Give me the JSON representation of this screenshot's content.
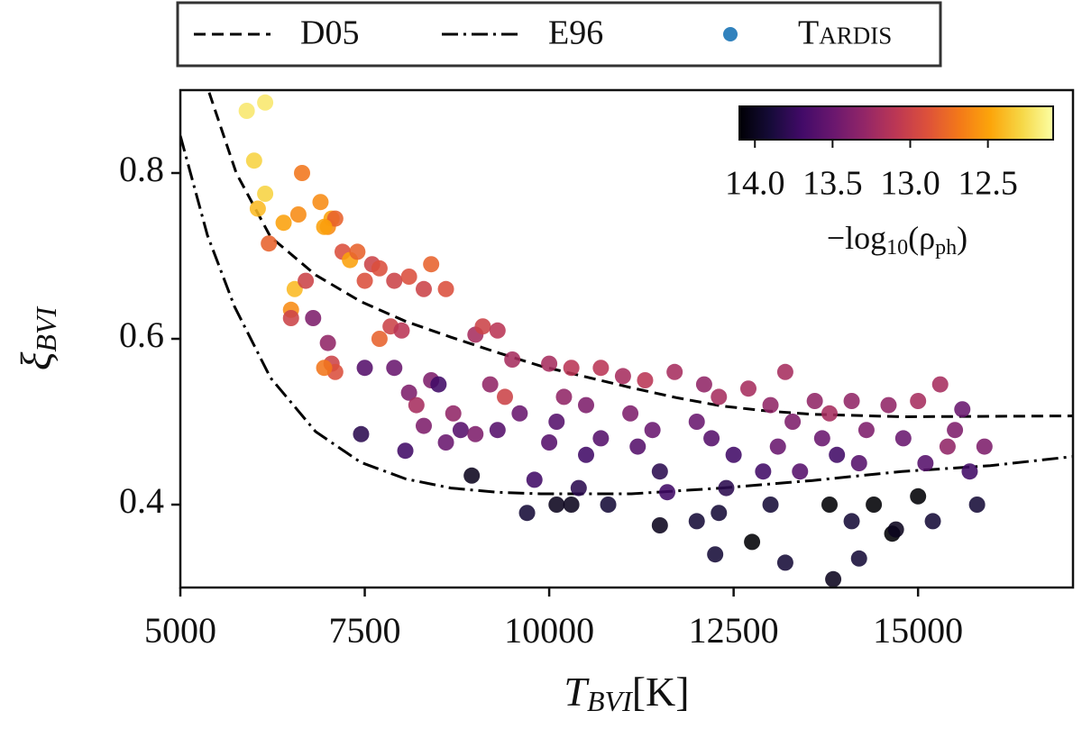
{
  "chart_data": {
    "type": "scatter",
    "xlabel": {
      "main": "T",
      "sub": "BVI",
      "unit": "[K]"
    },
    "ylabel": {
      "main": "ξ",
      "sub": "BVI"
    },
    "xlim": [
      5000,
      17100
    ],
    "ylim": [
      0.3,
      0.9
    ],
    "xticks": [
      5000,
      7500,
      10000,
      12500,
      15000
    ],
    "yticks": [
      0.4,
      0.6,
      0.8
    ],
    "legend": "top-outside",
    "lines": [
      {
        "name": "D05",
        "color": "#000000",
        "dash": "dashed",
        "x": [
          5391,
          5758,
          6222,
          6834,
          7445,
          8056,
          8668,
          9279,
          9890,
          10501,
          11113,
          11724,
          12335,
          12946,
          13558,
          14780,
          17100
        ],
        "values": [
          0.897,
          0.8,
          0.723,
          0.677,
          0.645,
          0.621,
          0.602,
          0.584,
          0.567,
          0.554,
          0.541,
          0.529,
          0.519,
          0.513,
          0.509,
          0.506,
          0.507
        ]
      },
      {
        "name": "E96",
        "color": "#000000",
        "dash": "dashdot",
        "x": [
          5000,
          5367,
          5734,
          6222,
          6834,
          7445,
          8056,
          8668,
          9279,
          9890,
          11113,
          12335,
          13558,
          14780,
          15980,
          17100
        ],
        "values": [
          0.845,
          0.725,
          0.639,
          0.553,
          0.488,
          0.451,
          0.431,
          0.42,
          0.415,
          0.413,
          0.413,
          0.42,
          0.429,
          0.44,
          0.447,
          0.458
        ]
      }
    ],
    "scatter": {
      "name": "Tardis",
      "color": "#3182bd",
      "x": [
        5900,
        6150,
        6000,
        6150,
        6050,
        6400,
        6600,
        6650,
        6200,
        6900,
        7050,
        7000,
        7100,
        6950,
        6550,
        6500,
        6500,
        6700,
        6800,
        7200,
        7300,
        7400,
        7600,
        7700,
        7000,
        7050,
        7100,
        6950,
        7500,
        7900,
        8100,
        8300,
        8400,
        8600,
        7700,
        7850,
        8000,
        7500,
        7900,
        7450,
        8100,
        8200,
        8400,
        8500,
        8300,
        8700,
        8600,
        8050,
        8800,
        9000,
        9100,
        9300,
        9500,
        9200,
        9400,
        9000,
        9300,
        9600,
        8950,
        9800,
        9700,
        10100,
        10300,
        10000,
        10300,
        10700,
        10200,
        10500,
        10100,
        10000,
        10500,
        10700,
        10400,
        10800,
        11000,
        11300,
        11700,
        11100,
        11400,
        11200,
        11500,
        11600,
        11500,
        12000,
        12100,
        12300,
        12000,
        12200,
        12500,
        12400,
        12300,
        12250,
        12750,
        13200,
        12700,
        13200,
        13000,
        13300,
        13100,
        12900,
        13000,
        13400,
        13600,
        13800,
        13700,
        13900,
        13800,
        13850,
        14100,
        14300,
        14200,
        14100,
        14400,
        14200,
        14650,
        14700,
        14600,
        14800,
        15000,
        15000,
        15100,
        15300,
        15200,
        15400,
        15600,
        15700,
        15800,
        15900,
        15500
      ],
      "values": [
        0.875,
        0.885,
        0.815,
        0.775,
        0.757,
        0.74,
        0.75,
        0.8,
        0.715,
        0.765,
        0.745,
        0.735,
        0.745,
        0.735,
        0.66,
        0.635,
        0.625,
        0.67,
        0.625,
        0.705,
        0.695,
        0.705,
        0.69,
        0.685,
        0.595,
        0.57,
        0.56,
        0.565,
        0.67,
        0.67,
        0.675,
        0.66,
        0.69,
        0.66,
        0.6,
        0.615,
        0.61,
        0.565,
        0.565,
        0.485,
        0.535,
        0.52,
        0.55,
        0.545,
        0.495,
        0.51,
        0.475,
        0.465,
        0.49,
        0.605,
        0.615,
        0.61,
        0.575,
        0.545,
        0.53,
        0.485,
        0.49,
        0.51,
        0.435,
        0.43,
        0.39,
        0.4,
        0.4,
        0.57,
        0.565,
        0.565,
        0.53,
        0.52,
        0.5,
        0.475,
        0.46,
        0.48,
        0.42,
        0.4,
        0.555,
        0.55,
        0.56,
        0.51,
        0.49,
        0.47,
        0.44,
        0.415,
        0.375,
        0.38,
        0.545,
        0.53,
        0.5,
        0.48,
        0.46,
        0.42,
        0.39,
        0.34,
        0.355,
        0.33,
        0.54,
        0.56,
        0.52,
        0.5,
        0.47,
        0.44,
        0.4,
        0.44,
        0.525,
        0.51,
        0.48,
        0.46,
        0.4,
        0.31,
        0.525,
        0.49,
        0.45,
        0.38,
        0.4,
        0.335,
        0.365,
        0.37,
        0.52,
        0.48,
        0.525,
        0.41,
        0.45,
        0.545,
        0.38,
        0.47,
        0.515,
        0.44,
        0.4,
        0.47,
        0.49
      ],
      "c": [
        12.2,
        12.2,
        12.3,
        12.3,
        12.4,
        12.5,
        12.6,
        12.7,
        12.8,
        12.6,
        12.5,
        12.6,
        12.8,
        12.5,
        12.4,
        12.6,
        13.0,
        13.0,
        13.4,
        12.9,
        12.5,
        12.8,
        13.0,
        12.9,
        13.3,
        13.0,
        12.9,
        12.7,
        12.9,
        13.0,
        12.9,
        13.0,
        12.8,
        12.9,
        12.8,
        13.0,
        13.1,
        13.6,
        13.5,
        13.8,
        13.4,
        13.2,
        13.4,
        13.7,
        13.4,
        13.3,
        13.5,
        13.7,
        13.6,
        13.2,
        13.0,
        13.1,
        13.2,
        13.3,
        13.0,
        13.4,
        13.6,
        13.5,
        14.0,
        13.7,
        13.9,
        14.0,
        14.0,
        13.2,
        13.1,
        13.1,
        13.3,
        13.4,
        13.6,
        13.6,
        13.7,
        13.6,
        13.8,
        13.9,
        13.2,
        13.1,
        13.2,
        13.4,
        13.5,
        13.6,
        13.8,
        13.7,
        14.0,
        13.9,
        13.3,
        13.2,
        13.5,
        13.6,
        13.7,
        13.8,
        13.9,
        13.9,
        14.1,
        13.9,
        13.2,
        13.2,
        13.3,
        13.4,
        13.5,
        13.7,
        13.9,
        13.6,
        13.3,
        13.2,
        13.5,
        13.7,
        14.1,
        14.0,
        13.3,
        13.4,
        13.6,
        13.9,
        14.1,
        13.9,
        14.1,
        14.0,
        13.3,
        13.5,
        13.2,
        14.1,
        13.6,
        13.2,
        13.9,
        13.3,
        13.5,
        13.7,
        13.9,
        13.4,
        13.4
      ]
    },
    "colorbar": {
      "cmap": "inferno",
      "clim": [
        14.1,
        12.08
      ],
      "ticks": [
        {
          "value": 14,
          "label": "14.0"
        },
        13.5,
        {
          "value": 13,
          "label": "13.0"
        },
        12.5
      ],
      "label": [
        "−log",
        "10",
        "(ρ",
        "ph",
        ")"
      ]
    }
  }
}
